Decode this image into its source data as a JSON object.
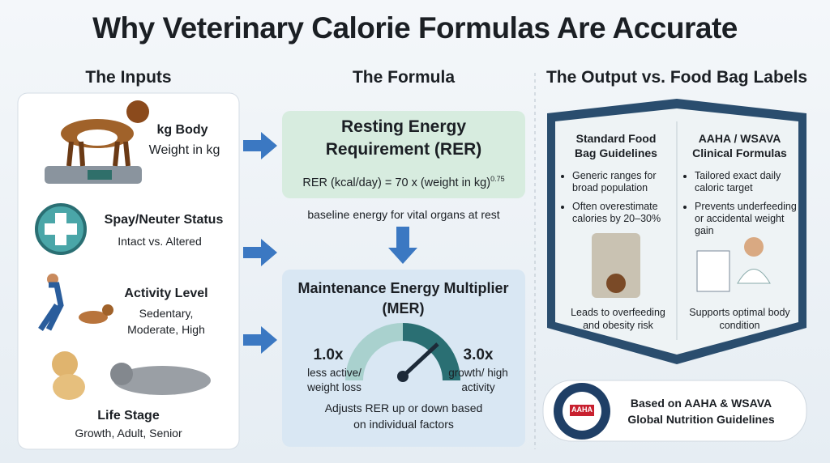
{
  "title": "Why Veterinary Calorie Formulas Are Accurate",
  "inputs": {
    "heading": "The Inputs",
    "items": [
      {
        "label": "kg  Body",
        "detail": "Weight in kg"
      },
      {
        "label": "Spay/Neuter Status",
        "detail": "Intact vs. Altered"
      },
      {
        "label": "Activity Level",
        "detail": "Sedentary, Moderate, High"
      },
      {
        "label": "Life Stage",
        "detail": "Growth, Adult, Senior"
      }
    ]
  },
  "formula": {
    "heading": "The Formula",
    "rer": {
      "title": "Resting Energy Requirement (RER)",
      "equation": "RER (kcal/day) = 70 x (weight in kg)",
      "exponent": "0.75"
    },
    "note": "baseline energy for vital organs at rest",
    "mer": {
      "title": "Maintenance Energy Multiplier (MER)",
      "low": {
        "value": "1.0x",
        "label": "less active/ weight loss"
      },
      "high": {
        "value": "3.0x",
        "label": "growth/ high activity"
      },
      "footer": "Adjusts RER up or down based on individual factors"
    }
  },
  "output": {
    "heading": "The Output vs. Food Bag Labels",
    "standard": {
      "title": "Standard Food Bag Guidelines",
      "bullets": [
        "Generic ranges for broad population",
        "Often overestimate calories by 20–30%"
      ],
      "result": "Leads to overfeeding and obesity risk"
    },
    "clinical": {
      "title": "AAHA / WSAVA Clinical Formulas",
      "bullets": [
        "Tailored exact daily caloric target",
        "Prevents underfeeding or accidental weight gain"
      ],
      "result": "Supports optimal body condition"
    }
  },
  "badge": {
    "seal": "AAHA",
    "text": "Based on AAHA & WSAVA Global Nutrition Guidelines"
  }
}
